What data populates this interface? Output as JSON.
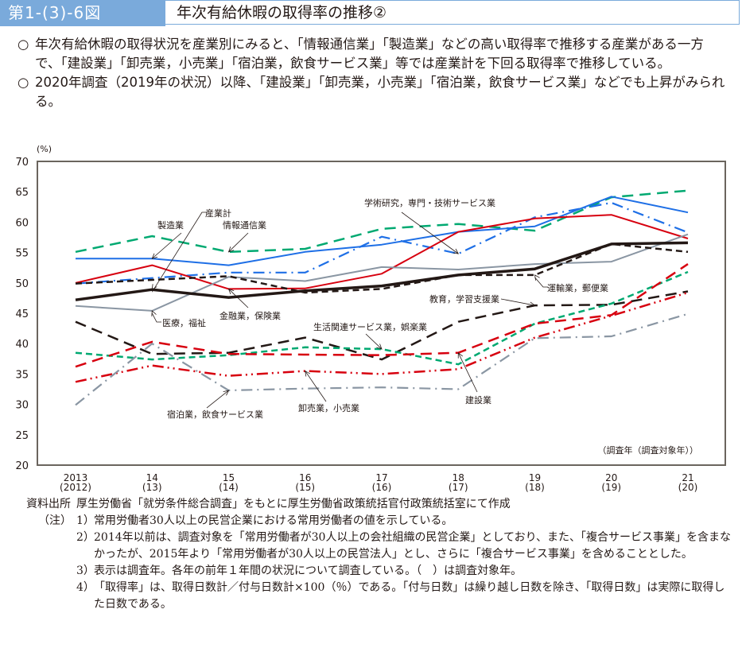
{
  "header": {
    "figure_number": "第1-(3)-6図",
    "title": "年次有給休暇の取得率の推移②"
  },
  "summary": [
    {
      "bullet": "○",
      "text": "年次有給休暇の取得状況を産業別にみると、「情報通信業」「製造業」などの高い取得率で推移する産業がある一方で、「建設業」「卸売業，小売業」「宿泊業，飲食サービス業」等では産業計を下回る取得率で推移している。"
    },
    {
      "bullet": "○",
      "text": "2020年調査（2019年の状況）以降、「建設業」「卸売業，小売業」「宿泊業，飲食サービス業」などでも上昇がみられる。"
    }
  ],
  "chart_data": {
    "type": "line",
    "title": "年次有給休暇の取得率の推移②",
    "ylabel": "(%)",
    "xlabel": "（調査年（調査対象年））",
    "ylim": [
      20,
      70
    ],
    "yticks": [
      20,
      25,
      30,
      35,
      40,
      45,
      50,
      55,
      60,
      65,
      70
    ],
    "grid": false,
    "categories": [
      {
        "year": "2013",
        "sub": "(2012)"
      },
      {
        "year": "14",
        "sub": "(13)"
      },
      {
        "year": "15",
        "sub": "(14)"
      },
      {
        "year": "16",
        "sub": "(15)"
      },
      {
        "year": "17",
        "sub": "(16)"
      },
      {
        "year": "18",
        "sub": "(17)"
      },
      {
        "year": "19",
        "sub": "(18)"
      },
      {
        "year": "20",
        "sub": "(19)"
      },
      {
        "year": "21",
        "sub": "(20)"
      }
    ],
    "series": [
      {
        "name": "情報通信業",
        "color": "#00a971",
        "dash": "long-dash",
        "values": [
          55.1,
          57.7,
          55.1,
          55.6,
          58.9,
          59.7,
          58.6,
          64.1,
          65.2
        ]
      },
      {
        "name": "製造業",
        "color": "#1e6fe6",
        "dash": "solid",
        "values": [
          54.0,
          54.0,
          52.9,
          55.1,
          56.3,
          58.4,
          59.3,
          64.2,
          61.6
        ]
      },
      {
        "name": "学術研究，専門・技術サービス業",
        "color": "#1e6fe6",
        "dash": "dash-dot",
        "values": [
          49.9,
          50.8,
          51.7,
          51.7,
          57.6,
          54.8,
          60.8,
          63.2,
          58.3
        ]
      },
      {
        "name": "金融業，保険業",
        "color": "#d7000f",
        "dash": "solid",
        "values": [
          50.0,
          52.9,
          49.0,
          49.1,
          51.5,
          58.4,
          60.6,
          61.2,
          57.3
        ]
      },
      {
        "name": "医療，福祉",
        "color": "#8a96a3",
        "dash": "solid",
        "values": [
          46.2,
          45.4,
          51.0,
          50.3,
          52.6,
          52.2,
          53.1,
          53.5,
          58.0
        ]
      },
      {
        "name": "運輸業，郵便業",
        "color": "#231815",
        "dash": "short-dash",
        "values": [
          49.9,
          50.5,
          51.1,
          48.4,
          49.0,
          51.3,
          51.3,
          56.4,
          55.1
        ]
      },
      {
        "name": "産業計",
        "color": "#231815",
        "dash": "thick",
        "values": [
          47.2,
          48.9,
          47.6,
          48.7,
          49.5,
          51.3,
          52.3,
          56.4,
          56.6
        ]
      },
      {
        "name": "教育，学習支援業",
        "color": "#231815",
        "dash": "long-dash",
        "values": [
          43.6,
          38.3,
          38.5,
          41.0,
          37.4,
          43.6,
          46.3,
          46.4,
          48.6
        ]
      },
      {
        "name": "生活関連サービス業，娯楽業",
        "color": "#00a971",
        "dash": "short-dash",
        "values": [
          38.5,
          37.4,
          38.1,
          39.4,
          39.1,
          36.6,
          43.3,
          46.6,
          51.8
        ]
      },
      {
        "name": "建設業",
        "color": "#d7000f",
        "dash": "long-dash",
        "values": [
          36.2,
          40.3,
          38.3,
          38.2,
          38.1,
          38.5,
          43.3,
          44.7,
          53.1
        ]
      },
      {
        "name": "卸売業，小売業",
        "color": "#d7000f",
        "dash": "dash-dot-dot",
        "values": [
          33.7,
          36.4,
          34.7,
          35.5,
          35.0,
          35.8,
          41.0,
          44.6,
          48.4
        ]
      },
      {
        "name": "宿泊業，飲食サービス業",
        "color": "#8a96a3",
        "dash": "dash-dot",
        "values": [
          29.9,
          40.0,
          32.3,
          32.6,
          32.8,
          32.5,
          40.9,
          41.2,
          44.9
        ]
      }
    ],
    "annotations": [
      {
        "label": "製造業",
        "series": "製造業"
      },
      {
        "label": "産業計",
        "series": "産業計"
      },
      {
        "label": "情報通信業",
        "series": "情報通信業"
      },
      {
        "label": "学術研究，専門・技術サービス業",
        "series": "学術研究，専門・技術サービス業"
      },
      {
        "label": "医療，福祉",
        "series": "医療，福祉"
      },
      {
        "label": "金融業，保険業",
        "series": "金融業，保険業"
      },
      {
        "label": "運輸業，郵便業",
        "series": "運輸業，郵便業"
      },
      {
        "label": "教育，学習支援業",
        "series": "教育，学習支援業"
      },
      {
        "label": "生活関連サービス業，娯楽業",
        "series": "生活関連サービス業，娯楽業"
      },
      {
        "label": "宿泊業，飲食サービス業",
        "series": "宿泊業，飲食サービス業"
      },
      {
        "label": "卸売業，小売業",
        "series": "卸売業，小売業"
      },
      {
        "label": "建設業",
        "series": "建設業"
      }
    ]
  },
  "notes": {
    "source_label": "資料出所",
    "source_text": "厚生労働省「就労条件総合調査」をもとに厚生労働省政策統括官付政策統括室にて作成",
    "notes_label": "（注）",
    "items": [
      {
        "num": "1）",
        "text": "常用労働者30人以上の民営企業における常用労働者の値を示している。"
      },
      {
        "num": "2）",
        "text": "2014年以前は、調査対象を「常用労働者が30人以上の会社組織の民営企業」としており、また、「複合サービス事業」を含まなかったが、2015年より「常用労働者が30人以上の民営法人」とし、さらに「複合サービス事業」を含めることとした。"
      },
      {
        "num": "3）",
        "text": "表示は調査年。各年の前年１年間の状況について調査している。（　）は調査対象年。"
      },
      {
        "num": "4）",
        "text": "「取得率」は、取得日数計／付与日数計×100（％）である。「付与日数」は繰り越し日数を除き、「取得日数」は実際に取得した日数である。"
      }
    ]
  }
}
